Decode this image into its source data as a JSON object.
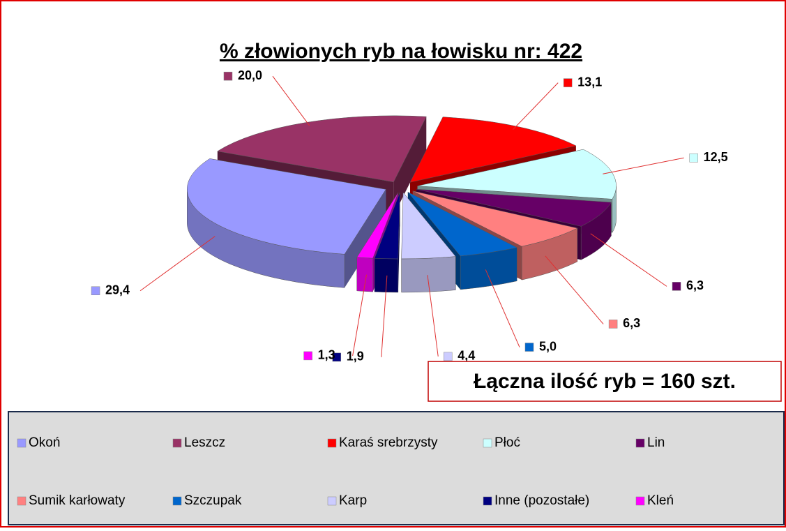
{
  "chart_data": {
    "type": "pie",
    "title": "% złowionych ryb na łowisku nr: 422",
    "annotation": "Łączna ilość ryb = 160 szt.",
    "categories": [
      "Okoń",
      "Leszcz",
      "Karaś srebrzysty",
      "Płoć",
      "Lin",
      "Sumik karłowaty",
      "Szczupak",
      "Karp",
      "Inne (pozostałe)",
      "Kleń"
    ],
    "values": [
      29.4,
      20.0,
      13.1,
      12.5,
      6.3,
      6.3,
      5.0,
      4.4,
      1.9,
      1.3
    ],
    "value_labels": [
      "29,4",
      "20,0",
      "13,1",
      "12,5",
      "6,3",
      "6,3",
      "5,0",
      "4,4",
      "1,9",
      "1,3"
    ],
    "colors": [
      "#9999ff",
      "#993366",
      "#ff0000",
      "#ccffff",
      "#660066",
      "#ff8080",
      "#0066cc",
      "#ccccff",
      "#000080",
      "#ff00ff"
    ],
    "legend": "bottom"
  }
}
